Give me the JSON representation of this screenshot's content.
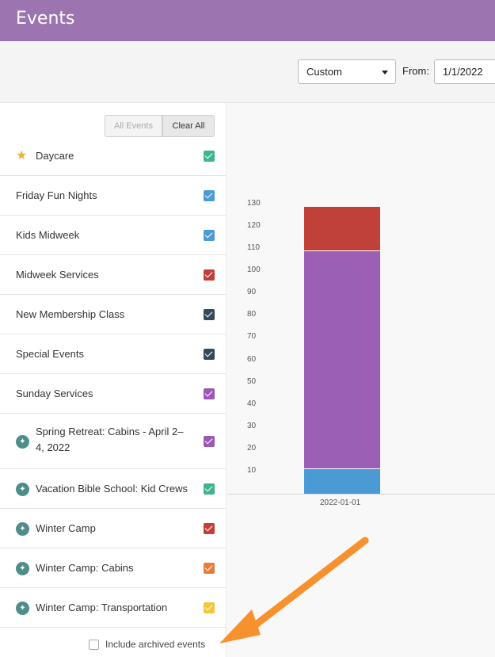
{
  "header": {
    "title": "Events"
  },
  "toolbar": {
    "range_select": "Custom",
    "from_label": "From:",
    "from_value": "1/1/2022"
  },
  "sidebar": {
    "all_events_label": "All Events",
    "clear_all_label": "Clear All",
    "items": [
      {
        "label": "Daycare",
        "icon": "star-icon",
        "color": "#3fb58f"
      },
      {
        "label": "Friday Fun Nights",
        "color": "#4a9ad4"
      },
      {
        "label": "Kids Midweek",
        "color": "#4a9ad4"
      },
      {
        "label": "Midweek Services",
        "color": "#c0403a"
      },
      {
        "label": "New Membership Class",
        "color": "#34495e"
      },
      {
        "label": "Special Events",
        "color": "#34495e"
      },
      {
        "label": "Sunday Services",
        "color": "#9b59b6"
      },
      {
        "label": "Spring Retreat: Cabins - April 2–4, 2022",
        "icon": "registration-icon",
        "color": "#9b59b6"
      },
      {
        "label": "Vacation Bible School: Kid Crews",
        "icon": "registration-icon",
        "color": "#3fb58f"
      },
      {
        "label": "Winter Camp",
        "icon": "registration-icon",
        "color": "#c0403a"
      },
      {
        "label": "Winter Camp: Cabins",
        "icon": "registration-icon",
        "color": "#e67e3a"
      },
      {
        "label": "Winter Camp: Transportation",
        "icon": "registration-icon",
        "color": "#f1c83a"
      }
    ],
    "archived_label": "Include archived events"
  },
  "chart_data": {
    "type": "bar",
    "stacked": true,
    "categories": [
      "2022-01-01"
    ],
    "yticks": [
      10,
      20,
      30,
      40,
      50,
      60,
      70,
      80,
      90,
      100,
      110,
      120,
      130
    ],
    "ylim": [
      0,
      130
    ],
    "series": [
      {
        "values": [
          11
        ],
        "color": "#4a9ad4"
      },
      {
        "values": [
          98
        ],
        "color": "#9b5fb5"
      },
      {
        "values": [
          20
        ],
        "color": "#c0403a"
      }
    ]
  },
  "annotation": {
    "arrow_color": "#f7912e"
  }
}
